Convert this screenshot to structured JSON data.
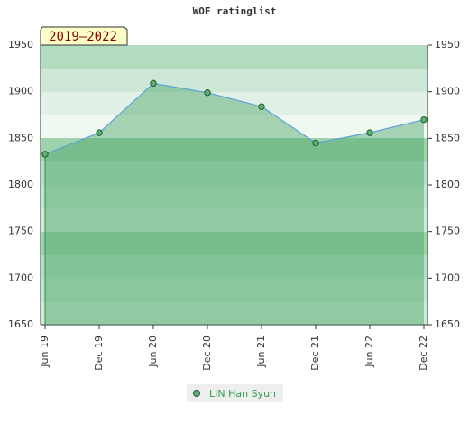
{
  "chart_data": {
    "type": "area",
    "title": "WOF ratinglist",
    "annotation": "2019–2022",
    "categories": [
      "Jun 19",
      "Dec 19",
      "Jun 20",
      "Dec 20",
      "Jun 21",
      "Dec 21",
      "Jun 22",
      "Dec 22"
    ],
    "series": [
      {
        "name": "LIN Han Syun",
        "color": "#5ba3d9",
        "values": [
          1833,
          1856,
          1909,
          1899,
          1884,
          1845,
          1856,
          1870
        ]
      }
    ],
    "ylim": [
      1650,
      1950
    ],
    "yticks": [
      1650,
      1700,
      1750,
      1800,
      1850,
      1900,
      1950
    ],
    "grid": true
  }
}
